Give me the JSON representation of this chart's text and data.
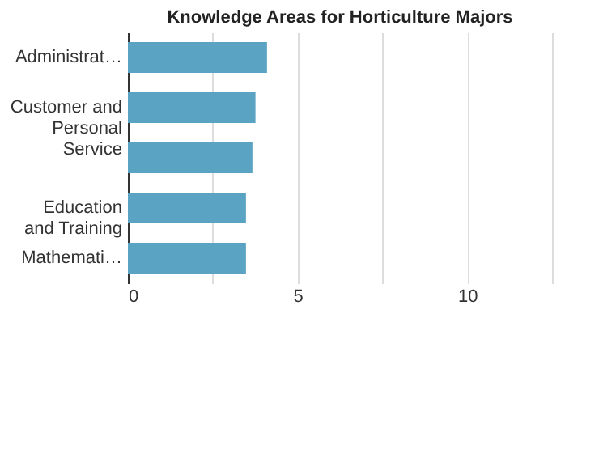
{
  "chart_data": {
    "type": "bar",
    "orientation": "horizontal",
    "title": "Knowledge Areas for Horticulture Majors",
    "categories": [
      "Administrat…",
      "Customer and Personal Service",
      null,
      "Education and Training",
      "Mathemati…"
    ],
    "values": [
      4.1,
      3.76,
      3.67,
      3.48,
      3.48
    ],
    "color": "#5ba3c2",
    "xlim": [
      0,
      12.5
    ],
    "xticks": [
      0,
      {
        "value": 2.5,
        "label": null
      },
      5,
      {
        "value": 7.5,
        "label": null
      },
      10,
      {
        "value": 12.5,
        "label": null
      }
    ],
    "grid": "x"
  }
}
